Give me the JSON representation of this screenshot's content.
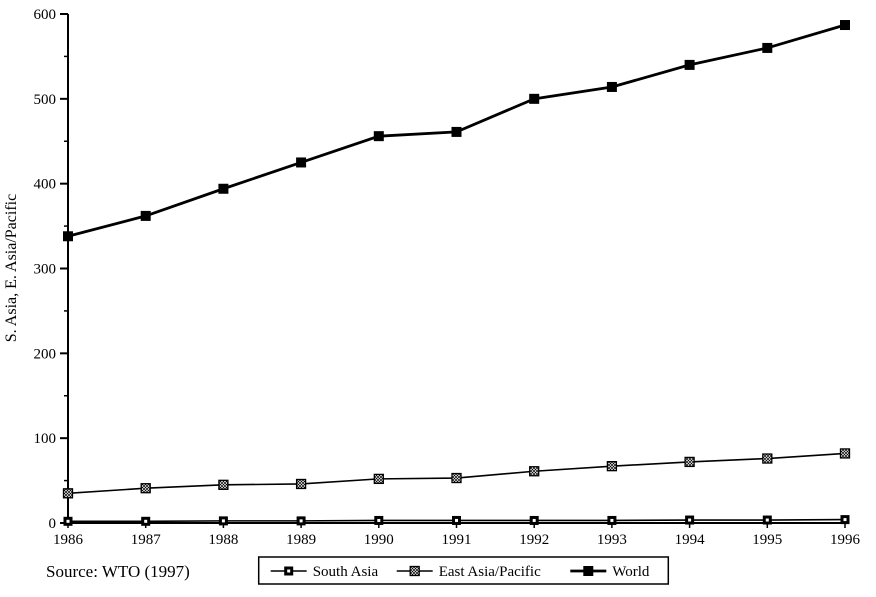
{
  "chart_data": {
    "type": "line",
    "x": [
      "1986",
      "1987",
      "1988",
      "1989",
      "1990",
      "1991",
      "1992",
      "1993",
      "1994",
      "1995",
      "1996"
    ],
    "series": [
      {
        "name": "South Asia",
        "marker": "dotted-square",
        "values": [
          2,
          2,
          2.5,
          2.5,
          3,
          3,
          3,
          3,
          3.5,
          3.5,
          4
        ]
      },
      {
        "name": "East Asia/Pacific",
        "marker": "hatched-square",
        "values": [
          35,
          41,
          45,
          46,
          52,
          53,
          61,
          67,
          72,
          76,
          82
        ]
      },
      {
        "name": "World",
        "marker": "filled-square",
        "values": [
          338,
          362,
          394,
          425,
          456,
          461,
          500,
          514,
          540,
          560,
          587
        ]
      }
    ],
    "title": "",
    "xlabel": "",
    "ylabel": "S. Asia, E. Asia/Pacific",
    "ylim": [
      0,
      600
    ],
    "yticks": [
      0,
      100,
      200,
      300,
      400,
      500,
      600
    ],
    "yminor_step": 50,
    "grid": false,
    "legend_position": "bottom",
    "source": "Source: WTO (1997)",
    "axis_color": "#000000",
    "line_color": "#000000"
  }
}
